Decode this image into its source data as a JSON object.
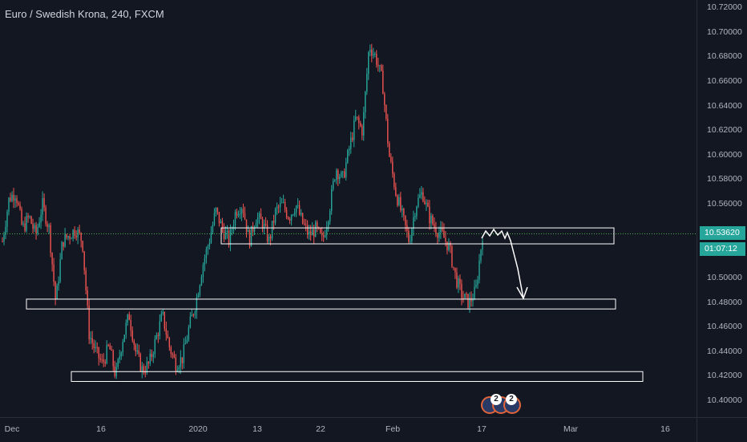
{
  "symbol_title": "Euro / Swedish Krona, 240, FXCM",
  "price_axis": {
    "labels": [
      "10.72000",
      "10.70000",
      "10.68000",
      "10.66000",
      "10.64000",
      "10.62000",
      "10.60000",
      "10.58000",
      "10.56000",
      "10.50000",
      "10.48000",
      "10.46000",
      "10.44000",
      "10.42000",
      "10.40000"
    ],
    "values": [
      10.72,
      10.7,
      10.68,
      10.66,
      10.64,
      10.62,
      10.6,
      10.58,
      10.56,
      10.5,
      10.48,
      10.46,
      10.44,
      10.42,
      10.4
    ]
  },
  "current_price": {
    "label": "10.53620",
    "value": 10.5362,
    "color": "#26a69a"
  },
  "countdown": "01:07:12",
  "time_axis": [
    "Dec",
    "16",
    "2020",
    "13",
    "22",
    "Feb",
    "17",
    "Mar",
    "16"
  ],
  "colors": {
    "background": "#131722",
    "bull": "#26a69a",
    "bear": "#ef5350",
    "zone_border": "#ffffff",
    "price_line": "#4caf50"
  },
  "zones": [
    {
      "name": "resistance-zone",
      "low": 10.528,
      "high": 10.541
    },
    {
      "name": "support-zone-1",
      "low": 10.475,
      "high": 10.483
    },
    {
      "name": "support-zone-2",
      "low": 10.416,
      "high": 10.424
    }
  ],
  "events": {
    "counts": [
      "2",
      "2"
    ],
    "icon": "economic-event-icon"
  },
  "chart_data": {
    "type": "candlestick",
    "series": [
      {
        "name": "",
        "close_path": [
          10.53,
          10.565,
          10.57,
          10.54,
          10.55,
          10.535,
          10.56,
          10.54,
          10.48,
          10.53,
          10.535,
          10.54,
          10.53,
          10.455,
          10.44,
          10.43,
          10.445,
          10.42,
          10.45,
          10.47,
          10.44,
          10.425,
          10.43,
          10.45,
          10.47,
          10.445,
          10.43,
          10.435,
          10.46,
          10.48,
          10.51,
          10.53,
          10.555,
          10.54,
          10.53,
          10.555,
          10.56,
          10.53,
          10.55,
          10.545,
          10.53,
          10.555,
          10.56,
          10.55,
          10.56,
          10.545,
          10.535,
          10.54,
          10.53,
          10.555,
          10.59,
          10.58,
          10.605,
          10.63,
          10.62,
          10.69,
          10.68,
          10.66,
          10.6,
          10.57,
          10.55,
          10.53,
          10.56,
          10.57,
          10.55,
          10.54,
          10.535,
          10.525,
          10.5,
          10.485,
          10.48,
          10.49,
          10.536
        ]
      }
    ],
    "ylim": [
      10.395,
      10.725
    ]
  }
}
